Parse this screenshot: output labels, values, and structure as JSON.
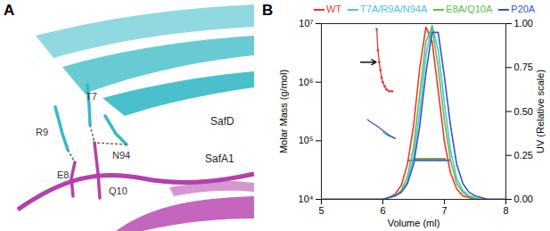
{
  "panel_a": {
    "panel_label": "A",
    "chains": [
      {
        "name": "SafD",
        "color": "#35b9c6"
      },
      {
        "name": "SafA1",
        "color": "#b540ad"
      }
    ],
    "residues": [
      {
        "label": "R9",
        "chain": "SafD"
      },
      {
        "label": "T7",
        "chain": "SafD"
      },
      {
        "label": "N94",
        "chain": "SafD"
      },
      {
        "label": "E8",
        "chain": "SafA1"
      },
      {
        "label": "Q10",
        "chain": "SafA1"
      }
    ],
    "contacts": [
      [
        "R9",
        "E8"
      ],
      [
        "T7",
        "Q10"
      ],
      [
        "N94",
        "Q10"
      ]
    ]
  },
  "chart_data": {
    "panel_label": "B",
    "type": "line",
    "log": "y",
    "legend": "top",
    "xlabel": "Volume (ml)",
    "ylabel": "Molar Mass (g/mol)",
    "y2label": "UV (Relative scale)",
    "xlim": [
      5,
      8
    ],
    "xticks": [
      5,
      6,
      7,
      8
    ],
    "ylim": [
      10000,
      10000000
    ],
    "yticks": [
      {
        "value": 10000,
        "label": "10⁴"
      },
      {
        "value": 100000,
        "label": "10⁵"
      },
      {
        "value": 1000000,
        "label": "10⁶"
      },
      {
        "value": 10000000,
        "label": "10⁷"
      }
    ],
    "y2lim": [
      0,
      1
    ],
    "y2ticks": [
      {
        "value": 0,
        "label": "0.00"
      },
      {
        "value": 0.25,
        "label": "0.25"
      },
      {
        "value": 0.5,
        "label": "0.50"
      },
      {
        "value": 0.75,
        "label": "0.75"
      },
      {
        "value": 1,
        "label": "1.00"
      }
    ],
    "x": [
      5.0,
      5.5,
      6.0,
      6.1,
      6.2,
      6.3,
      6.4,
      6.5,
      6.6,
      6.7,
      6.8,
      6.9,
      7.0,
      7.1,
      7.2,
      7.3,
      7.4,
      7.5,
      7.6,
      7.7,
      7.8,
      8.0
    ],
    "series": [
      {
        "name": "WT",
        "color": "#e8382f",
        "axis": "y2",
        "marker": "dot",
        "values": [
          0,
          0,
          0,
          0.01,
          0.03,
          0.08,
          0.2,
          0.42,
          0.75,
          0.98,
          0.9,
          0.62,
          0.33,
          0.15,
          0.06,
          0.02,
          0.01,
          0,
          0,
          0,
          0,
          0
        ],
        "mass_x": [
          5.9,
          5.92,
          5.94,
          5.96,
          5.98,
          6.0,
          6.03,
          6.06,
          6.1,
          6.15,
          6.3,
          6.5,
          6.6,
          6.7,
          6.8,
          6.9,
          7.0
        ],
        "mass_values": [
          8000000,
          3500000,
          2200000,
          1600000,
          1200000,
          1000000,
          850000,
          750000,
          700000,
          700000,
          null,
          48000,
          48000,
          48000,
          48000,
          48000,
          49000
        ]
      },
      {
        "name": "T7A/R9A/N94A",
        "color": "#4cc3d9",
        "axis": "y2",
        "values": [
          0,
          0,
          0,
          0.01,
          0.02,
          0.04,
          0.1,
          0.24,
          0.5,
          0.82,
          0.99,
          0.85,
          0.55,
          0.28,
          0.12,
          0.05,
          0.02,
          0.01,
          0,
          0,
          0,
          0
        ],
        "mass_x": [
          6.0,
          6.05,
          6.1,
          6.15,
          6.2,
          6.3,
          6.5,
          6.6,
          6.7,
          6.8,
          6.9,
          7.0,
          7.1
        ],
        "mass_values": [
          140000,
          130000,
          125000,
          115000,
          110000,
          null,
          47000,
          47000,
          47000,
          47000,
          47000,
          47000,
          48000
        ]
      },
      {
        "name": "E8A/Q10A",
        "color": "#5cc04a",
        "axis": "y2",
        "values": [
          0,
          0,
          0,
          0.01,
          0.02,
          0.05,
          0.13,
          0.3,
          0.6,
          0.9,
          0.98,
          0.75,
          0.45,
          0.22,
          0.09,
          0.04,
          0.015,
          0.005,
          0,
          0,
          0,
          0
        ],
        "mass_x": [
          6.05,
          6.1,
          6.15,
          6.2,
          6.3,
          6.5,
          6.6,
          6.7,
          6.8,
          6.9,
          7.0
        ],
        "mass_values": [
          130000,
          120000,
          115000,
          110000,
          null,
          50000,
          50000,
          50000,
          50000,
          50000,
          50000
        ]
      },
      {
        "name": "P20A",
        "color": "#3355c8",
        "axis": "y2",
        "values": [
          0,
          0,
          0,
          0.01,
          0.02,
          0.04,
          0.09,
          0.2,
          0.42,
          0.72,
          0.95,
          0.95,
          0.7,
          0.42,
          0.2,
          0.09,
          0.04,
          0.02,
          0.01,
          0,
          0,
          0
        ],
        "mass_x": [
          5.75,
          5.8,
          5.9,
          6.0,
          6.1,
          6.2,
          6.3,
          6.4,
          6.5,
          6.6,
          6.7,
          6.8,
          6.9,
          7.0,
          7.1
        ],
        "mass_values": [
          230000,
          210000,
          180000,
          150000,
          125000,
          110000,
          null,
          46000,
          46000,
          46000,
          46000,
          46000,
          46000,
          46000,
          46000
        ]
      }
    ]
  }
}
